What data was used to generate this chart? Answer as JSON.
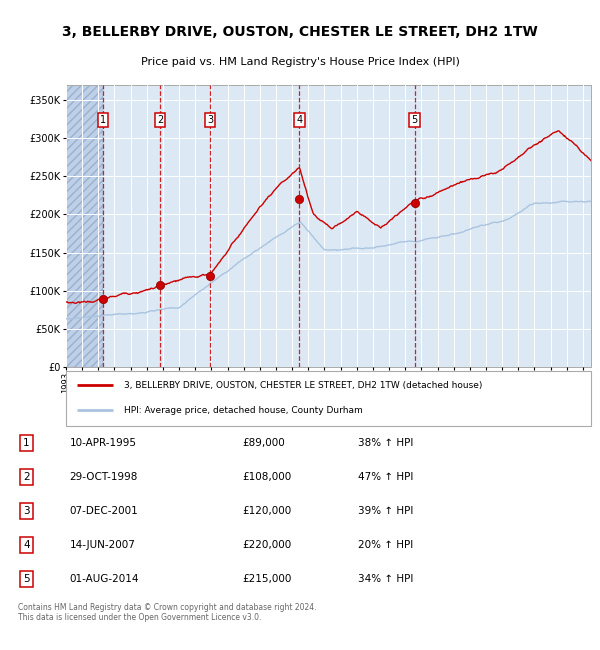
{
  "title": "3, BELLERBY DRIVE, OUSTON, CHESTER LE STREET, DH2 1TW",
  "subtitle": "Price paid vs. HM Land Registry's House Price Index (HPI)",
  "sales": [
    {
      "num": 1,
      "date_label": "10-APR-1995",
      "year": 1995.28,
      "price": 89000,
      "hpi_pct": "38% ↑ HPI"
    },
    {
      "num": 2,
      "date_label": "29-OCT-1998",
      "year": 1998.83,
      "price": 108000,
      "hpi_pct": "47% ↑ HPI"
    },
    {
      "num": 3,
      "date_label": "07-DEC-2001",
      "year": 2001.93,
      "price": 120000,
      "hpi_pct": "39% ↑ HPI"
    },
    {
      "num": 4,
      "date_label": "14-JUN-2007",
      "year": 2007.45,
      "price": 220000,
      "hpi_pct": "20% ↑ HPI"
    },
    {
      "num": 5,
      "date_label": "01-AUG-2014",
      "year": 2014.58,
      "price": 215000,
      "hpi_pct": "34% ↑ HPI"
    }
  ],
  "hpi_color": "#aac4e0",
  "sale_color": "#cc0000",
  "plot_bg": "#dce9f5",
  "hatch_facecolor": "#bdd0e8",
  "ylim": [
    0,
    370000
  ],
  "xlim_start": 1993,
  "xlim_end": 2025.5,
  "yticks": [
    0,
    50000,
    100000,
    150000,
    200000,
    250000,
    300000,
    350000
  ],
  "ytick_labels": [
    "£0",
    "£50K",
    "£100K",
    "£150K",
    "£200K",
    "£250K",
    "£300K",
    "£350K"
  ],
  "legend_property_label": "3, BELLERBY DRIVE, OUSTON, CHESTER LE STREET, DH2 1TW (detached house)",
  "legend_hpi_label": "HPI: Average price, detached house, County Durham",
  "footer": "Contains HM Land Registry data © Crown copyright and database right 2024.\nThis data is licensed under the Open Government Licence v3.0."
}
